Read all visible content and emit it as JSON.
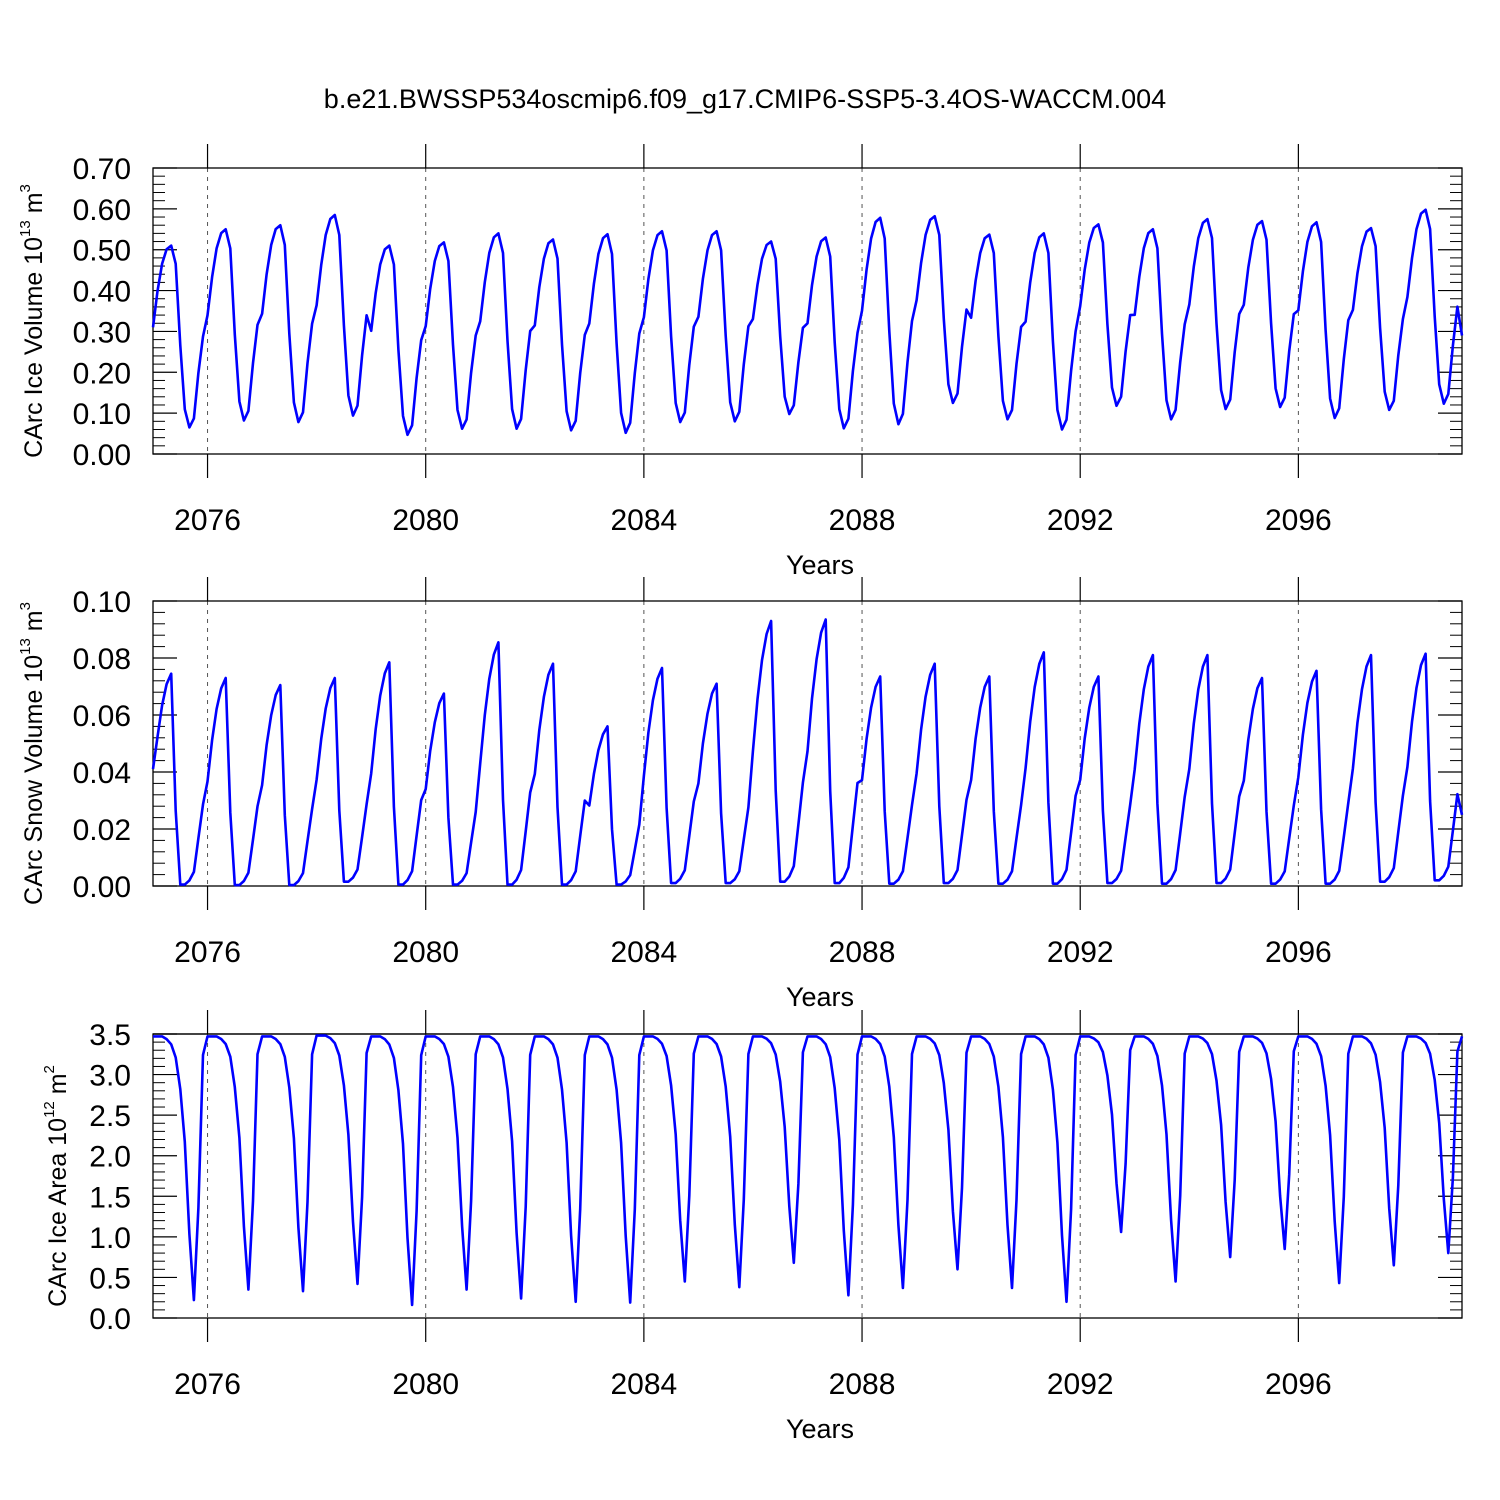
{
  "title": "b.e21.BWSSP534oscmip6.f09_g17.CMIP6-SSP5-3.4OS-WACCM.004",
  "colors": {
    "series": "#0000ff",
    "axis": "#000000",
    "grid": "#555555"
  },
  "chart_data": [
    {
      "type": "line",
      "id": "ice-volume",
      "ylabel": {
        "main": "CArc Ice Volume 10",
        "exp": "13",
        "unit": " m",
        "unit_exp": "3"
      },
      "xlabel": "Years",
      "xlim": [
        2075.0,
        2099.0
      ],
      "ylim": [
        0.0,
        0.7
      ],
      "yticks": [
        0.0,
        0.1,
        0.2,
        0.3,
        0.4,
        0.5,
        0.6,
        0.7
      ],
      "ytick_labels": [
        "0.00",
        "0.10",
        "0.20",
        "0.30",
        "0.40",
        "0.50",
        "0.60",
        "0.70"
      ],
      "xticks": [
        2076,
        2080,
        2084,
        2088,
        2092,
        2096
      ],
      "xtick_labels": [
        "2076",
        "2080",
        "2084",
        "2088",
        "2092",
        "2096"
      ],
      "grid_x": "dashed at major ticks",
      "x_start": 2075.0,
      "x_step": 0.08333,
      "annual_min": [
        0.065,
        0.082,
        0.078,
        0.094,
        0.047,
        0.062,
        0.062,
        0.058,
        0.052,
        0.078,
        0.08,
        0.098,
        0.063,
        0.073,
        0.125,
        0.085,
        0.06,
        0.118,
        0.085,
        0.11,
        0.115,
        0.088,
        0.108,
        0.123
      ],
      "annual_max": [
        0.51,
        0.55,
        0.56,
        0.585,
        0.51,
        0.518,
        0.54,
        0.525,
        0.538,
        0.545,
        0.545,
        0.52,
        0.53,
        0.578,
        0.582,
        0.537,
        0.54,
        0.562,
        0.55,
        0.575,
        0.57,
        0.567,
        0.553,
        0.598
      ],
      "start_value": 0.31,
      "end_value": 0.29
    },
    {
      "type": "line",
      "id": "snow-volume",
      "ylabel": {
        "main": "CArc Snow Volume 10",
        "exp": "13",
        "unit": " m",
        "unit_exp": "3"
      },
      "xlabel": "Years",
      "xlim": [
        2075.0,
        2099.0
      ],
      "ylim": [
        0.0,
        0.1
      ],
      "yticks": [
        0.0,
        0.02,
        0.04,
        0.06,
        0.08,
        0.1
      ],
      "ytick_labels": [
        "0.00",
        "0.02",
        "0.04",
        "0.06",
        "0.08",
        "0.10"
      ],
      "xticks": [
        2076,
        2080,
        2084,
        2088,
        2092,
        2096
      ],
      "xtick_labels": [
        "2076",
        "2080",
        "2084",
        "2088",
        "2092",
        "2096"
      ],
      "grid_x": "dashed at major ticks",
      "x_start": 2075.0,
      "x_step": 0.08333,
      "annual_min": [
        0.0005,
        0.0003,
        0.0003,
        0.0015,
        0.0005,
        0.0005,
        0.0005,
        0.0005,
        0.0005,
        0.001,
        0.001,
        0.0015,
        0.001,
        0.0008,
        0.001,
        0.0008,
        0.0008,
        0.001,
        0.0008,
        0.001,
        0.0008,
        0.0008,
        0.0015,
        0.002
      ],
      "annual_max": [
        0.0745,
        0.073,
        0.0705,
        0.073,
        0.0785,
        0.0675,
        0.0855,
        0.078,
        0.056,
        0.0765,
        0.071,
        0.093,
        0.0935,
        0.0735,
        0.078,
        0.0735,
        0.082,
        0.0735,
        0.081,
        0.081,
        0.073,
        0.0755,
        0.081,
        0.0815
      ],
      "start_value": 0.041,
      "end_value": 0.025
    },
    {
      "type": "line",
      "id": "ice-area",
      "ylabel": {
        "main": "CArc Ice Area 10",
        "exp": "12",
        "unit": " m",
        "unit_exp": "2"
      },
      "xlabel": "Years",
      "xlim": [
        2075.0,
        2099.0
      ],
      "ylim": [
        0.0,
        3.5
      ],
      "yticks": [
        0.0,
        0.5,
        1.0,
        1.5,
        2.0,
        2.5,
        3.0,
        3.5
      ],
      "ytick_labels": [
        "0.0",
        "0.5",
        "1.0",
        "1.5",
        "2.0",
        "2.5",
        "3.0",
        "3.5"
      ],
      "xticks": [
        2076,
        2080,
        2084,
        2088,
        2092,
        2096
      ],
      "xtick_labels": [
        "2076",
        "2080",
        "2084",
        "2088",
        "2092",
        "2096"
      ],
      "grid_x": "dashed at major ticks",
      "grid_y": "solid line at 3.5",
      "x_start": 2075.0,
      "x_step": 0.08333,
      "annual_min": [
        0.22,
        0.35,
        0.33,
        0.42,
        0.16,
        0.35,
        0.24,
        0.2,
        0.19,
        0.45,
        0.38,
        0.68,
        0.28,
        0.37,
        0.6,
        0.37,
        0.2,
        1.06,
        0.45,
        0.75,
        0.85,
        0.43,
        0.65,
        0.8
      ],
      "annual_max": [
        3.47,
        3.47,
        3.47,
        3.48,
        3.47,
        3.47,
        3.47,
        3.47,
        3.47,
        3.47,
        3.47,
        3.47,
        3.47,
        3.47,
        3.47,
        3.47,
        3.47,
        3.47,
        3.47,
        3.47,
        3.47,
        3.47,
        3.47,
        3.47
      ],
      "start_value": 3.47,
      "end_value": 3.47
    }
  ]
}
